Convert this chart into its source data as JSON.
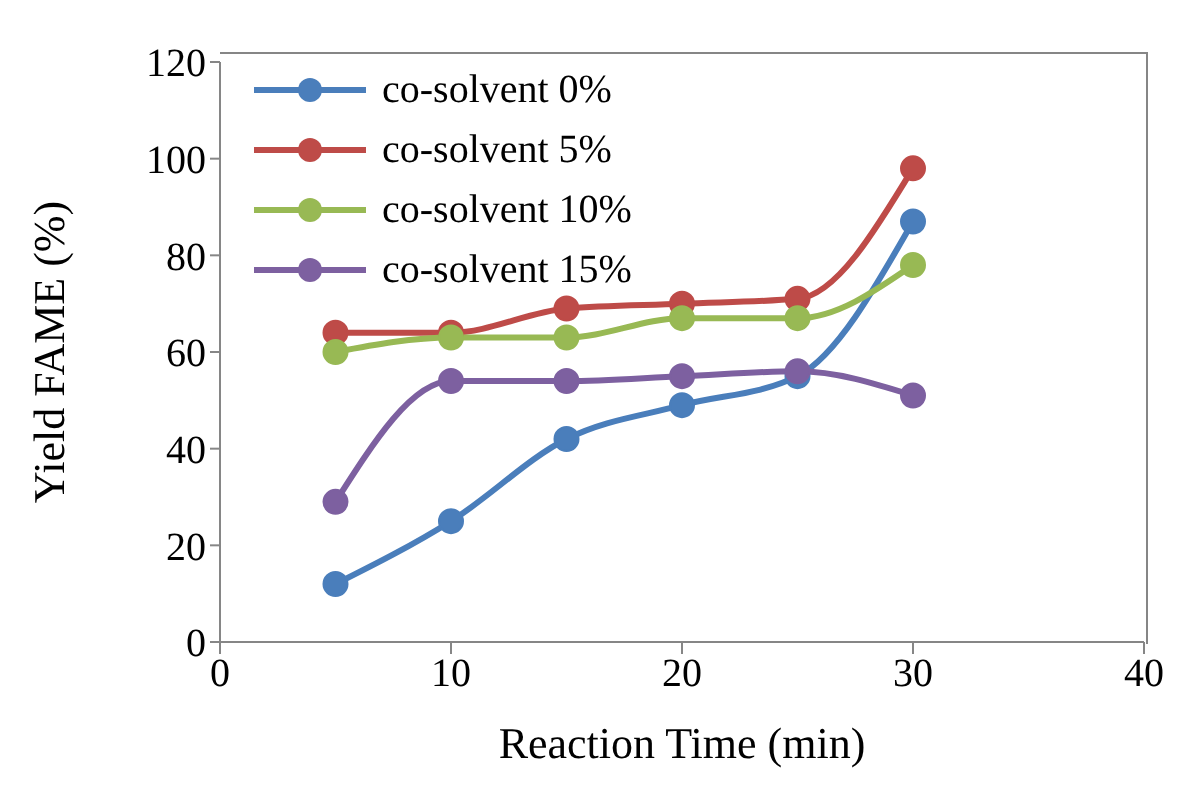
{
  "chart_data": {
    "type": "line",
    "xlabel": "Reaction Time (min)",
    "ylabel": "Yield FAME (%)",
    "x": [
      5,
      10,
      15,
      20,
      25,
      30
    ],
    "series": [
      {
        "name": "co-solvent 0%",
        "color": "#4a7ebb",
        "values": [
          12,
          25,
          42,
          49,
          55,
          87
        ]
      },
      {
        "name": "co-solvent 5%",
        "color": "#be4b48",
        "values": [
          64,
          64,
          69,
          70,
          71,
          98
        ]
      },
      {
        "name": "co-solvent 10%",
        "color": "#98b954",
        "values": [
          60,
          63,
          63,
          67,
          67,
          78
        ]
      },
      {
        "name": "co-solvent 15%",
        "color": "#7d60a0",
        "values": [
          29,
          54,
          54,
          55,
          56,
          51
        ]
      }
    ],
    "xlim": [
      0,
      40
    ],
    "xticks": [
      0,
      10,
      20,
      30,
      40
    ],
    "ylim": [
      0,
      120
    ],
    "yticks": [
      0,
      20,
      40,
      60,
      80,
      100,
      120
    ],
    "grid": false,
    "legend": "top left",
    "marker": "circle",
    "line_style": "solid"
  }
}
